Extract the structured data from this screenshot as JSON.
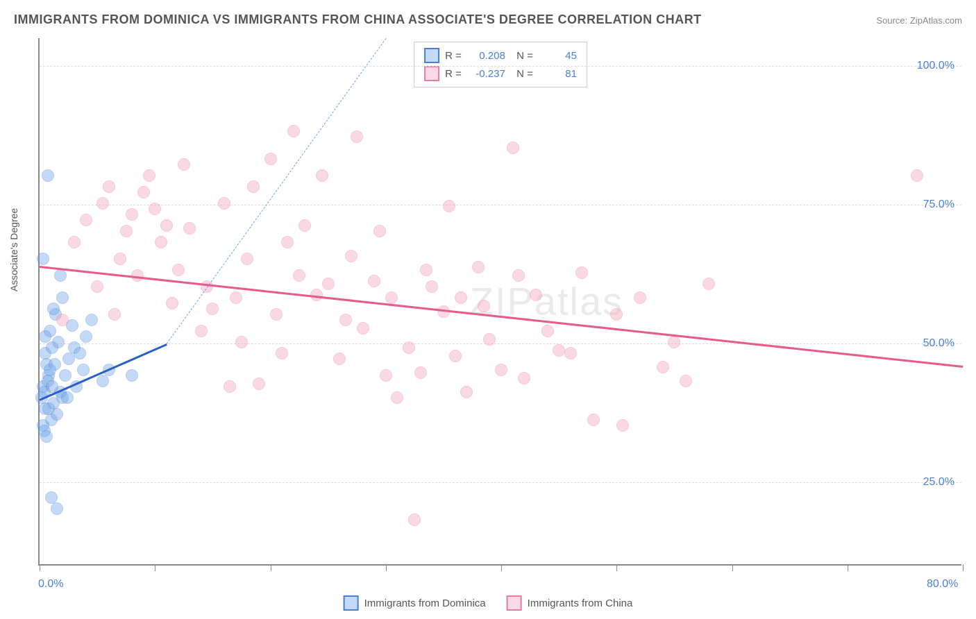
{
  "title": "IMMIGRANTS FROM DOMINICA VS IMMIGRANTS FROM CHINA ASSOCIATE'S DEGREE CORRELATION CHART",
  "source_label": "Source: ",
  "source_value": "ZipAtlas.com",
  "ylabel": "Associate's Degree",
  "watermark": "ZIPatlas",
  "chart": {
    "type": "scatter",
    "xlim": [
      0,
      80
    ],
    "ylim": [
      10,
      105
    ],
    "y_gridlines": [
      25,
      50,
      75,
      100
    ],
    "y_tick_labels": [
      "25.0%",
      "50.0%",
      "75.0%",
      "100.0%"
    ],
    "x_ticks": [
      0,
      10,
      20,
      30,
      40,
      50,
      60,
      70,
      80
    ],
    "x_tick_labels": {
      "0": "0.0%",
      "80": "80.0%"
    },
    "grid_color": "#dddddd",
    "axis_color": "#888888",
    "background_color": "#ffffff",
    "label_color": "#4a7fd8",
    "point_radius": 9,
    "point_opacity": 0.4
  },
  "series": [
    {
      "name": "Immigrants from Dominica",
      "fill_color": "#6ba3e8",
      "stroke_color": "#4a7fd8",
      "trend_color": "#2a5fc8",
      "trend_dash_color": "#6ba3e8",
      "R": "0.208",
      "N": "45",
      "trend": {
        "x1": 0,
        "y1": 40,
        "x2": 11,
        "y2": 50
      },
      "trend_dash": {
        "x1": 11,
        "y1": 50,
        "x2": 30,
        "y2": 105
      },
      "points": [
        [
          0.2,
          40
        ],
        [
          0.3,
          42
        ],
        [
          0.5,
          38
        ],
        [
          0.8,
          44
        ],
        [
          1.0,
          36
        ],
        [
          0.4,
          41
        ],
        [
          0.6,
          46
        ],
        [
          1.2,
          39
        ],
        [
          0.3,
          35
        ],
        [
          0.7,
          43
        ],
        [
          1.5,
          37
        ],
        [
          0.9,
          45
        ],
        [
          1.8,
          41
        ],
        [
          0.5,
          48
        ],
        [
          2.0,
          40
        ],
        [
          0.4,
          34
        ],
        [
          1.1,
          42
        ],
        [
          0.6,
          33
        ],
        [
          1.3,
          46
        ],
        [
          0.8,
          38
        ],
        [
          2.2,
          44
        ],
        [
          1.6,
          50
        ],
        [
          0.9,
          52
        ],
        [
          2.5,
          47
        ],
        [
          1.4,
          55
        ],
        [
          3.0,
          49
        ],
        [
          2.8,
          53
        ],
        [
          0.3,
          65
        ],
        [
          1.0,
          22
        ],
        [
          1.5,
          20
        ],
        [
          3.5,
          48
        ],
        [
          4.0,
          51
        ],
        [
          5.5,
          43
        ],
        [
          6.0,
          45
        ],
        [
          8.0,
          44
        ],
        [
          4.5,
          54
        ],
        [
          1.2,
          56
        ],
        [
          2.0,
          58
        ],
        [
          3.2,
          42
        ],
        [
          0.7,
          80
        ],
        [
          1.8,
          62
        ],
        [
          2.4,
          40
        ],
        [
          3.8,
          45
        ],
        [
          1.1,
          49
        ],
        [
          0.5,
          51
        ]
      ]
    },
    {
      "name": "Immigrants from China",
      "fill_color": "#f5a3b8",
      "stroke_color": "#e87ba0",
      "trend_color": "#e85a8a",
      "R": "-0.237",
      "N": "81",
      "trend": {
        "x1": 0,
        "y1": 64,
        "x2": 80,
        "y2": 46
      },
      "points": [
        [
          2,
          54
        ],
        [
          3,
          68
        ],
        [
          4,
          72
        ],
        [
          5,
          60
        ],
        [
          5.5,
          75
        ],
        [
          6,
          78
        ],
        [
          7,
          65
        ],
        [
          7.5,
          70
        ],
        [
          8,
          73
        ],
        [
          8.5,
          62
        ],
        [
          9,
          77
        ],
        [
          10,
          74
        ],
        [
          10.5,
          68
        ],
        [
          11,
          71
        ],
        [
          11.5,
          57
        ],
        [
          12,
          63
        ],
        [
          13,
          70.5
        ],
        [
          14,
          52
        ],
        [
          14.5,
          60
        ],
        [
          15,
          56
        ],
        [
          16,
          75
        ],
        [
          16.5,
          42
        ],
        [
          17,
          58
        ],
        [
          17.5,
          50
        ],
        [
          18,
          65
        ],
        [
          19,
          42.5
        ],
        [
          20,
          83
        ],
        [
          20.5,
          55
        ],
        [
          21,
          48
        ],
        [
          22,
          88
        ],
        [
          22.5,
          62
        ],
        [
          23,
          71
        ],
        [
          24,
          58.5
        ],
        [
          24.5,
          80
        ],
        [
          25,
          60.5
        ],
        [
          26,
          47
        ],
        [
          27,
          65.5
        ],
        [
          27.5,
          87
        ],
        [
          28,
          52.5
        ],
        [
          29,
          61
        ],
        [
          30,
          44
        ],
        [
          30.5,
          58
        ],
        [
          31,
          40
        ],
        [
          32,
          49
        ],
        [
          32.5,
          18
        ],
        [
          33,
          44.5
        ],
        [
          34,
          60
        ],
        [
          35,
          55.5
        ],
        [
          35.5,
          74.5
        ],
        [
          36,
          47.5
        ],
        [
          37,
          41
        ],
        [
          38,
          63.5
        ],
        [
          38.5,
          56.5
        ],
        [
          39,
          50.5
        ],
        [
          40,
          45
        ],
        [
          41,
          85
        ],
        [
          42,
          43.5
        ],
        [
          43,
          58.5
        ],
        [
          44,
          52
        ],
        [
          45,
          48.5
        ],
        [
          47,
          62.5
        ],
        [
          48,
          36
        ],
        [
          50,
          55
        ],
        [
          52,
          58
        ],
        [
          54,
          45.5
        ],
        [
          55,
          50
        ],
        [
          56,
          43
        ],
        [
          58,
          60.5
        ],
        [
          76,
          80
        ],
        [
          6.5,
          55
        ],
        [
          9.5,
          80
        ],
        [
          12.5,
          82
        ],
        [
          18.5,
          78
        ],
        [
          21.5,
          68
        ],
        [
          26.5,
          54
        ],
        [
          29.5,
          70
        ],
        [
          33.5,
          63
        ],
        [
          36.5,
          58
        ],
        [
          41.5,
          62
        ],
        [
          46,
          48
        ],
        [
          50.5,
          35
        ]
      ]
    }
  ],
  "legend": {
    "items": [
      {
        "label": "Immigrants from Dominica",
        "series": 0
      },
      {
        "label": "Immigrants from China",
        "series": 1
      }
    ]
  }
}
